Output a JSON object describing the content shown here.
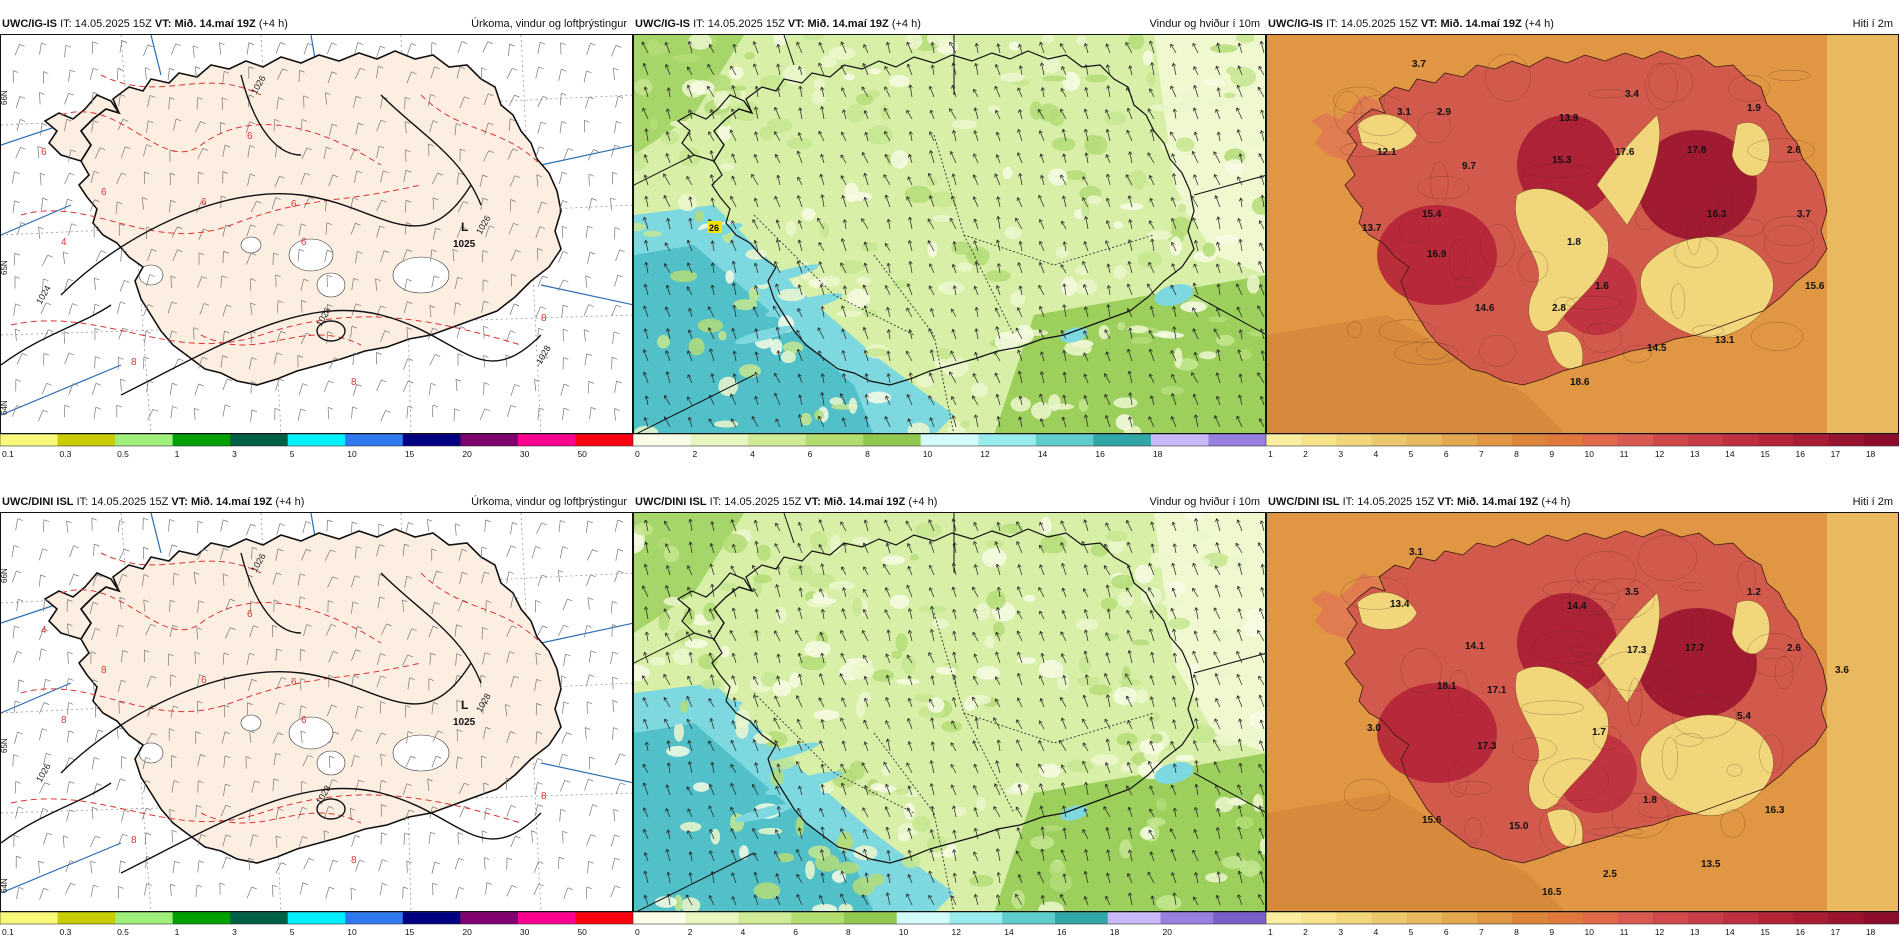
{
  "panels": [
    {
      "model": "UWC/IG-IS",
      "it_label": "IT:",
      "it_value": "14.05.2025 15Z",
      "vt_label": "VT:",
      "vt_value": "Mið. 14.maí 19Z",
      "lead": "(+4 h)",
      "title": "Úrkoma, vindur og loftþrýstingur",
      "type": "precip",
      "lat_labels": [
        "66N",
        "65N",
        "64N"
      ],
      "low": {
        "letter": "L",
        "pressure": "1025"
      },
      "isobar_labels": [
        "1026",
        "1026",
        "1024",
        "1026",
        "1028"
      ],
      "red_labels": [
        "6",
        "6",
        "4",
        "6",
        "6",
        "6",
        "8",
        "8",
        "8",
        "6"
      ],
      "colorbar": {
        "ticks": [
          "0.1",
          "0.3",
          "0.5",
          "1",
          "3",
          "5",
          "10",
          "15",
          "20",
          "30",
          "50"
        ],
        "colors": [
          "#f8f87a",
          "#c8cc00",
          "#9ef07a",
          "#00a000",
          "#006046",
          "#00f0ff",
          "#3078f0",
          "#000080",
          "#800070",
          "#ff0090",
          "#ff0010"
        ]
      }
    },
    {
      "model": "UWC/IG-IS",
      "it_label": "IT:",
      "it_value": "14.05.2025 15Z",
      "vt_label": "VT:",
      "vt_value": "Mið. 14.maí 19Z",
      "lead": "(+4 h)",
      "title": "Vindur og hviður í 10m",
      "type": "wind",
      "marker": "26",
      "colorbar": {
        "ticks": [
          "0",
          "2",
          "4",
          "6",
          "8",
          "10",
          "12",
          "14",
          "16",
          "18"
        ],
        "colors": [
          "#fbfde8",
          "#e8f6c0",
          "#cfeb95",
          "#b0dc70",
          "#90c850",
          "#d4fbfb",
          "#98ecec",
          "#60cccc",
          "#30a6a6",
          "#c8b8f8",
          "#9880e0"
        ]
      }
    },
    {
      "model": "UWC/IG-IS",
      "it_label": "IT:",
      "it_value": "14.05.2025 15Z",
      "vt_label": "VT:",
      "vt_value": "Mið. 14.maí 19Z",
      "lead": "(+4 h)",
      "title": "Hiti í 2m",
      "type": "temp",
      "temps": [
        "3.7",
        "3.1",
        "2.9",
        "13.9",
        "3.4",
        "1.9",
        "12.1",
        "9.7",
        "15.3",
        "17.6",
        "17.8",
        "2.6",
        "13.7",
        "15.4",
        "16.3",
        "3.7",
        "16.9",
        "1.8",
        "1.6",
        "14.6",
        "2.8",
        "15.6",
        "14.5",
        "13.1",
        "18.6"
      ],
      "colorbar": {
        "ticks": [
          "1",
          "2",
          "3",
          "4",
          "5",
          "6",
          "7",
          "8",
          "9",
          "10",
          "11",
          "12",
          "13",
          "14",
          "15",
          "16",
          "17",
          "18"
        ],
        "colors": [
          "#fbeea0",
          "#f6e38c",
          "#f1d67c",
          "#ecc86c",
          "#e8b95e",
          "#e4a850",
          "#e09642",
          "#dc8438",
          "#e0783c",
          "#e06a48",
          "#d85a50",
          "#d04a4c",
          "#c83c48",
          "#be3040",
          "#b42438",
          "#a81c34",
          "#9a1430",
          "#8c0c2c"
        ]
      }
    },
    {
      "model": "UWC/DINI ISL",
      "it_label": "IT:",
      "it_value": "14.05.2025 15Z",
      "vt_label": "VT:",
      "vt_value": "Mið. 14.maí 19Z",
      "lead": "(+4 h)",
      "title": "Úrkoma, vindur og loftþrýstingur",
      "type": "precip",
      "lat_labels": [
        "66N",
        "65N",
        "64N"
      ],
      "low": {
        "letter": "L",
        "pressure": "1025"
      },
      "isobar_labels": [
        "1026",
        "1028",
        "1026",
        "1028"
      ],
      "red_labels": [
        "4",
        "6",
        "8",
        "6",
        "6",
        "6",
        "8",
        "8",
        "8",
        "8"
      ],
      "colorbar": {
        "ticks": [
          "0.1",
          "0.3",
          "0.5",
          "1",
          "3",
          "5",
          "10",
          "15",
          "20",
          "30",
          "50"
        ],
        "colors": [
          "#f8f87a",
          "#c8cc00",
          "#9ef07a",
          "#00a000",
          "#006046",
          "#00f0ff",
          "#3078f0",
          "#000080",
          "#800070",
          "#ff0090",
          "#ff0010"
        ]
      }
    },
    {
      "model": "UWC/DINI ISL",
      "it_label": "IT:",
      "it_value": "14.05.2025 15Z",
      "vt_label": "VT:",
      "vt_value": "Mið. 14.maí 19Z",
      "lead": "(+4 h)",
      "title": "Vindur og hviður í 10m",
      "type": "wind",
      "marker": "",
      "colorbar": {
        "ticks": [
          "0",
          "2",
          "4",
          "6",
          "8",
          "10",
          "12",
          "14",
          "16",
          "18",
          "20"
        ],
        "colors": [
          "#fbfde8",
          "#e8f6c0",
          "#cfeb95",
          "#b0dc70",
          "#90c850",
          "#d4fbfb",
          "#98ecec",
          "#60cccc",
          "#30a6a6",
          "#c8b8f8",
          "#9880e0",
          "#7860c8"
        ]
      }
    },
    {
      "model": "UWC/DINI ISL",
      "it_label": "IT:",
      "it_value": "14.05.2025 15Z",
      "vt_label": "VT:",
      "vt_value": "Mið. 14.maí 19Z",
      "lead": "(+4 h)",
      "title": "Hiti í 2m",
      "type": "temp",
      "temps": [
        "3.1",
        "13.4",
        "14.4",
        "3.5",
        "1.2",
        "14.1",
        "17.3",
        "17.7",
        "2.6",
        "3.6",
        "18.1",
        "17.1",
        "5.4",
        "3.0",
        "1.7",
        "17.3",
        "1.8",
        "15.6",
        "15.0",
        "16.3",
        "13.5",
        "2.5",
        "16.5"
      ],
      "colorbar": {
        "ticks": [
          "1",
          "2",
          "3",
          "4",
          "5",
          "6",
          "7",
          "8",
          "9",
          "10",
          "11",
          "12",
          "13",
          "14",
          "15",
          "16",
          "17",
          "18"
        ],
        "colors": [
          "#fbeea0",
          "#f6e38c",
          "#f1d67c",
          "#ecc86c",
          "#e8b95e",
          "#e4a850",
          "#e09642",
          "#dc8438",
          "#e0783c",
          "#e06a48",
          "#d85a50",
          "#d04a4c",
          "#c83c48",
          "#be3040",
          "#b42438",
          "#a81c34",
          "#9a1430",
          "#8c0c2c"
        ]
      }
    }
  ]
}
